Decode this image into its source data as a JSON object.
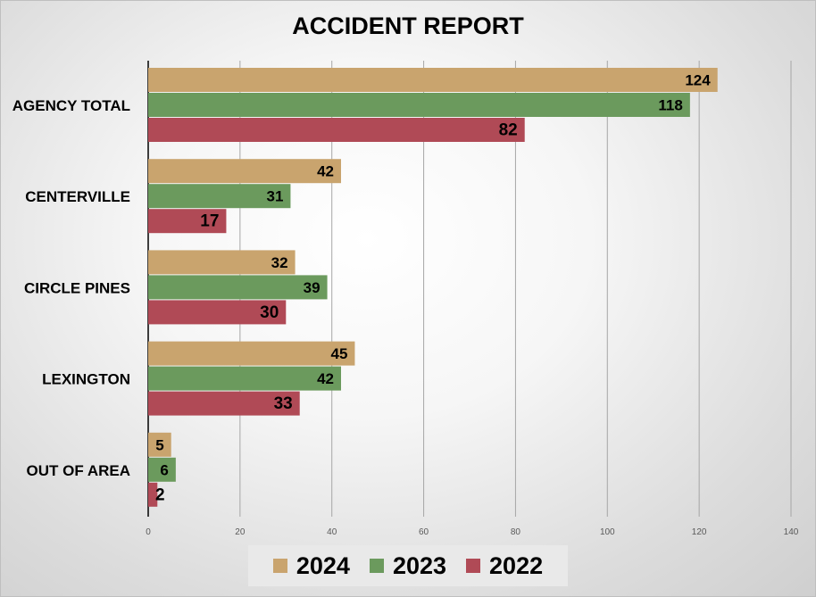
{
  "chart_data": {
    "type": "bar",
    "orientation": "horizontal",
    "title": "ACCIDENT REPORT",
    "categories": [
      "AGENCY TOTAL",
      "CENTERVILLE",
      "CIRCLE PINES",
      "LEXINGTON",
      "OUT OF AREA"
    ],
    "series": [
      {
        "name": "2024",
        "color": "#c9a46e",
        "values": [
          124,
          42,
          32,
          45,
          5
        ]
      },
      {
        "name": "2023",
        "color": "#6b9a5d",
        "values": [
          118,
          31,
          39,
          42,
          6
        ]
      },
      {
        "name": "2022",
        "color": "#b04a56",
        "values": [
          82,
          17,
          30,
          33,
          2
        ]
      }
    ],
    "xlim": [
      0,
      140
    ],
    "xticks": [
      "0",
      "20",
      "40",
      "60",
      "80",
      "100",
      "120",
      "140"
    ],
    "grid": "vertical",
    "legend_position": "bottom"
  }
}
